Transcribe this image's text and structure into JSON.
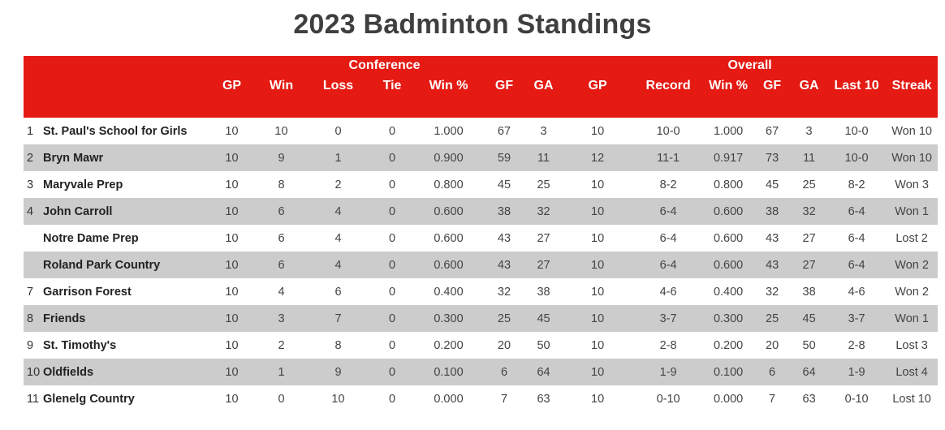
{
  "title": "2023 Badminton Standings",
  "group_headers": {
    "conference": "Conference",
    "overall": "Overall"
  },
  "columns": {
    "conf_gp": "GP",
    "conf_win": "Win",
    "conf_loss": "Loss",
    "conf_tie": "Tie",
    "conf_win_pct": "Win %",
    "conf_gf": "GF",
    "conf_ga": "GA",
    "ov_gp": "GP",
    "ov_record": "Record",
    "ov_win_pct": "Win %",
    "ov_gf": "GF",
    "ov_ga": "GA",
    "last10": "Last 10",
    "streak": "Streak"
  },
  "colors": {
    "header_bg": "#e41a13",
    "alt_row_bg": "#cccccc",
    "title_color": "#3f3f3f"
  },
  "rows": [
    {
      "rank": "1",
      "team": "St. Paul's School for Girls",
      "gp": "10",
      "win": "10",
      "loss": "0",
      "tie": "0",
      "win_pct": "1.000",
      "gf": "67",
      "ga": "3",
      "ov_gp": "10",
      "record": "10-0",
      "ov_win_pct": "1.000",
      "ov_gf": "67",
      "ov_ga": "3",
      "last10": "10-0",
      "streak": "Won 10"
    },
    {
      "rank": "2",
      "team": "Bryn Mawr",
      "gp": "10",
      "win": "9",
      "loss": "1",
      "tie": "0",
      "win_pct": "0.900",
      "gf": "59",
      "ga": "11",
      "ov_gp": "12",
      "record": "11-1",
      "ov_win_pct": "0.917",
      "ov_gf": "73",
      "ov_ga": "11",
      "last10": "10-0",
      "streak": "Won 10"
    },
    {
      "rank": "3",
      "team": "Maryvale Prep",
      "gp": "10",
      "win": "8",
      "loss": "2",
      "tie": "0",
      "win_pct": "0.800",
      "gf": "45",
      "ga": "25",
      "ov_gp": "10",
      "record": "8-2",
      "ov_win_pct": "0.800",
      "ov_gf": "45",
      "ov_ga": "25",
      "last10": "8-2",
      "streak": "Won 3"
    },
    {
      "rank": "4",
      "team": "John Carroll",
      "gp": "10",
      "win": "6",
      "loss": "4",
      "tie": "0",
      "win_pct": "0.600",
      "gf": "38",
      "ga": "32",
      "ov_gp": "10",
      "record": "6-4",
      "ov_win_pct": "0.600",
      "ov_gf": "38",
      "ov_ga": "32",
      "last10": "6-4",
      "streak": "Won 1"
    },
    {
      "rank": "",
      "team": "Notre Dame Prep",
      "gp": "10",
      "win": "6",
      "loss": "4",
      "tie": "0",
      "win_pct": "0.600",
      "gf": "43",
      "ga": "27",
      "ov_gp": "10",
      "record": "6-4",
      "ov_win_pct": "0.600",
      "ov_gf": "43",
      "ov_ga": "27",
      "last10": "6-4",
      "streak": "Lost 2"
    },
    {
      "rank": "",
      "team": "Roland Park Country",
      "gp": "10",
      "win": "6",
      "loss": "4",
      "tie": "0",
      "win_pct": "0.600",
      "gf": "43",
      "ga": "27",
      "ov_gp": "10",
      "record": "6-4",
      "ov_win_pct": "0.600",
      "ov_gf": "43",
      "ov_ga": "27",
      "last10": "6-4",
      "streak": "Won 2"
    },
    {
      "rank": "7",
      "team": "Garrison Forest",
      "gp": "10",
      "win": "4",
      "loss": "6",
      "tie": "0",
      "win_pct": "0.400",
      "gf": "32",
      "ga": "38",
      "ov_gp": "10",
      "record": "4-6",
      "ov_win_pct": "0.400",
      "ov_gf": "32",
      "ov_ga": "38",
      "last10": "4-6",
      "streak": "Won 2"
    },
    {
      "rank": "8",
      "team": "Friends",
      "gp": "10",
      "win": "3",
      "loss": "7",
      "tie": "0",
      "win_pct": "0.300",
      "gf": "25",
      "ga": "45",
      "ov_gp": "10",
      "record": "3-7",
      "ov_win_pct": "0.300",
      "ov_gf": "25",
      "ov_ga": "45",
      "last10": "3-7",
      "streak": "Won 1"
    },
    {
      "rank": "9",
      "team": "St. Timothy's",
      "gp": "10",
      "win": "2",
      "loss": "8",
      "tie": "0",
      "win_pct": "0.200",
      "gf": "20",
      "ga": "50",
      "ov_gp": "10",
      "record": "2-8",
      "ov_win_pct": "0.200",
      "ov_gf": "20",
      "ov_ga": "50",
      "last10": "2-8",
      "streak": "Lost 3"
    },
    {
      "rank": "10",
      "team": "Oldfields",
      "gp": "10",
      "win": "1",
      "loss": "9",
      "tie": "0",
      "win_pct": "0.100",
      "gf": "6",
      "ga": "64",
      "ov_gp": "10",
      "record": "1-9",
      "ov_win_pct": "0.100",
      "ov_gf": "6",
      "ov_ga": "64",
      "last10": "1-9",
      "streak": "Lost 4"
    },
    {
      "rank": "11",
      "team": "Glenelg Country",
      "gp": "10",
      "win": "0",
      "loss": "10",
      "tie": "0",
      "win_pct": "0.000",
      "gf": "7",
      "ga": "63",
      "ov_gp": "10",
      "record": "0-10",
      "ov_win_pct": "0.000",
      "ov_gf": "7",
      "ov_ga": "63",
      "last10": "0-10",
      "streak": "Lost 10"
    }
  ]
}
